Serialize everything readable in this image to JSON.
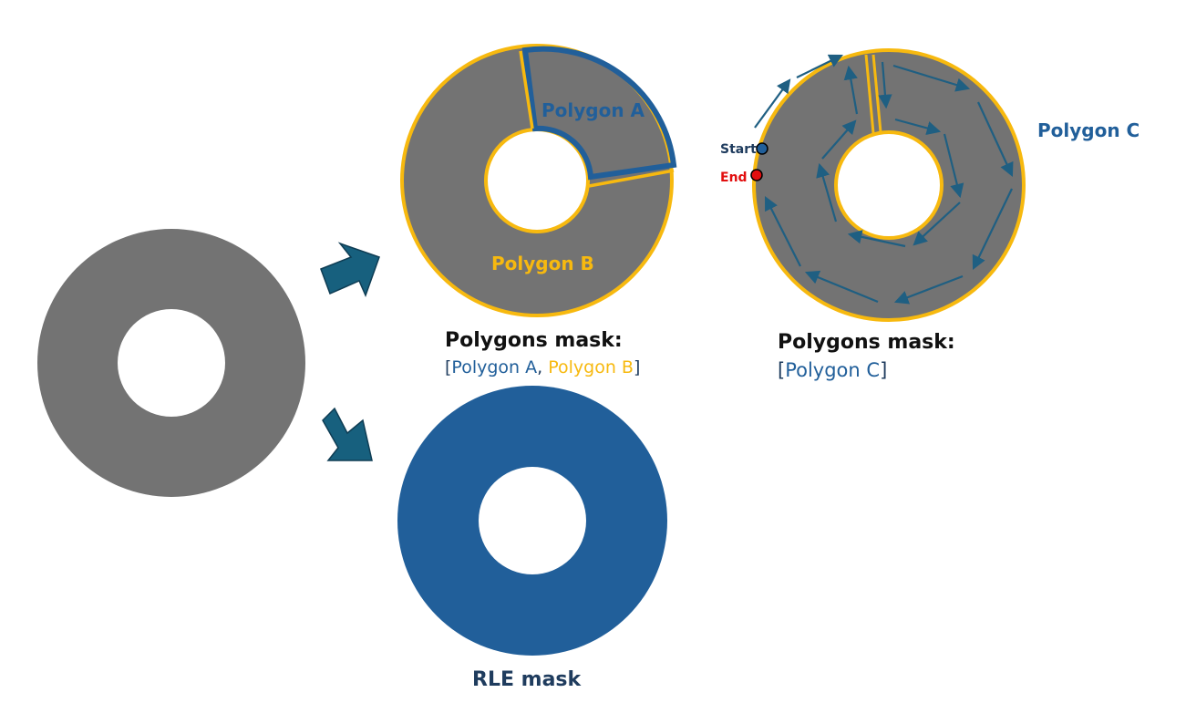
{
  "colors": {
    "gray": "#737373",
    "blue": "#215f9a",
    "dark_blue": "#1f3c5e",
    "gold": "#f7b90f",
    "arrow": "#17607e",
    "red": "#e20f0f",
    "black": "#111111"
  },
  "polygon_a_label": "Polygon A",
  "polygon_b_label": "Polygon B",
  "polygon_c_label": "Polygon C",
  "start_label": "Start",
  "end_label": "End",
  "mask1": {
    "title": "Polygons mask:",
    "open": "[",
    "item_a": "Polygon A",
    "sep": ", ",
    "item_b": "Polygon B",
    "close": "]"
  },
  "mask2": {
    "title": "Polygons mask:",
    "open": "[",
    "item_c": "Polygon C",
    "close": "]"
  },
  "rle_label": "RLE mask"
}
